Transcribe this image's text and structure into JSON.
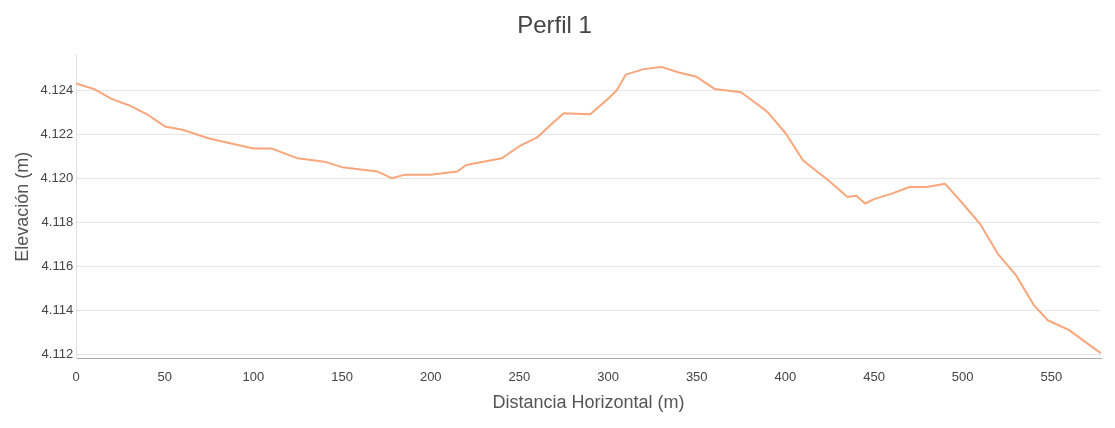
{
  "chart_data": {
    "type": "line",
    "title": "Perfil 1",
    "xlabel": "Distancia Horizontal (m)",
    "ylabel": "Elevación (m)",
    "x": [
      0,
      10,
      20,
      30,
      40,
      50,
      60,
      75,
      100,
      110,
      125,
      140,
      150,
      170,
      178,
      185,
      200,
      215,
      220,
      240,
      250,
      260,
      268,
      275,
      290,
      300,
      305,
      310,
      320,
      330,
      340,
      350,
      360,
      375,
      390,
      400,
      410,
      425,
      435,
      440,
      445,
      450,
      460,
      470,
      480,
      490,
      500,
      510,
      520,
      530,
      540,
      548,
      560,
      572,
      578
    ],
    "series": [
      {
        "color": "#f9a67c",
        "values": [
          4124.3,
          4124.05,
          4123.6,
          4123.3,
          4122.9,
          4122.35,
          4122.2,
          4121.8,
          4121.35,
          4121.35,
          4120.9,
          4120.75,
          4120.5,
          4120.3,
          4120.0,
          4120.15,
          4120.15,
          4120.3,
          4120.6,
          4120.9,
          4121.45,
          4121.85,
          4122.45,
          4122.95,
          4122.9,
          4123.6,
          4124.0,
          4124.7,
          4124.95,
          4125.05,
          4124.8,
          4124.6,
          4124.05,
          4123.9,
          4123.0,
          4122.05,
          4120.8,
          4119.85,
          4119.15,
          4119.2,
          4118.85,
          4119.05,
          4119.3,
          4119.6,
          4119.6,
          4119.75,
          4118.85,
          4117.9,
          4116.55,
          4115.6,
          4114.25,
          4113.55,
          4113.1,
          4112.4,
          4112.05
        ]
      }
    ],
    "xlim": [
      0,
      578
    ],
    "xticks": [
      0,
      50,
      100,
      150,
      200,
      250,
      300,
      350,
      400,
      450,
      500,
      550
    ],
    "ylim": [
      4111.8,
      4125.6
    ],
    "yticks": [
      {
        "value": 4112,
        "label": "4.112"
      },
      {
        "value": 4114,
        "label": "4.114"
      },
      {
        "value": 4116,
        "label": "4.116"
      },
      {
        "value": 4118,
        "label": "4.118"
      },
      {
        "value": 4120,
        "label": "4.120"
      },
      {
        "value": 4122,
        "label": "4.122"
      },
      {
        "value": 4124,
        "label": "4.124"
      }
    ],
    "grid": "y",
    "legend": false,
    "marker": "none",
    "line_style": "solid"
  }
}
